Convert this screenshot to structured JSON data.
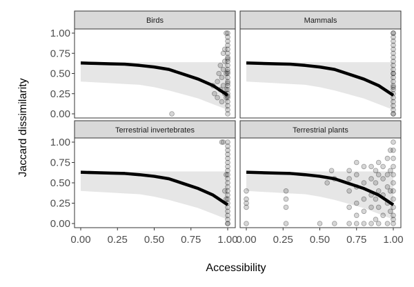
{
  "chart_data": {
    "type": "scatter",
    "xlabel": "Accessibility",
    "ylabel": "Jaccard dissimilarity",
    "xlim": [
      0,
      1
    ],
    "ylim": [
      0,
      1
    ],
    "x_ticks": [
      0.0,
      0.25,
      0.5,
      0.75,
      1.0
    ],
    "x_tick_labels": [
      "0.00",
      "0.25",
      "0.50",
      "0.75",
      "1.00"
    ],
    "y_ticks": [
      0.0,
      0.25,
      0.5,
      0.75,
      1.0
    ],
    "y_tick_labels": [
      "0.00",
      "0.25",
      "0.50",
      "0.75",
      "1.00"
    ],
    "grid": false,
    "colors": {
      "points": "#000000",
      "fit_line": "#000000",
      "ribbon": "#e6e6e6",
      "strip_bg": "#d9d9d9",
      "panel_border": "#333333"
    },
    "fit_line": {
      "x": [
        0.0,
        0.1,
        0.2,
        0.3,
        0.4,
        0.5,
        0.6,
        0.7,
        0.8,
        0.9,
        1.0
      ],
      "y": [
        0.63,
        0.625,
        0.62,
        0.615,
        0.6,
        0.58,
        0.55,
        0.49,
        0.43,
        0.35,
        0.23
      ],
      "ribbon_low": [
        0.4,
        0.39,
        0.38,
        0.37,
        0.36,
        0.33,
        0.29,
        0.24,
        0.19,
        0.12,
        0.05
      ],
      "ribbon_high": [
        0.63,
        0.635,
        0.635,
        0.635,
        0.64,
        0.64,
        0.64,
        0.64,
        0.64,
        0.64,
        0.64
      ]
    },
    "panels": [
      {
        "title": "Birds",
        "points": {
          "x": [
            0.62,
            0.9,
            0.91,
            0.93,
            0.93,
            0.94,
            0.95,
            0.95,
            0.96,
            0.96,
            0.97,
            0.97,
            0.97,
            0.98,
            0.98,
            0.98,
            0.99,
            0.99,
            0.99,
            0.99,
            1.0,
            1.0,
            1.0,
            1.0,
            1.0,
            1.0,
            1.0,
            1.0,
            1.0,
            1.0,
            1.0,
            1.0,
            1.0,
            1.0,
            1.0,
            1.0,
            1.0,
            1.0,
            1.0,
            1.0,
            1.0,
            1.0,
            1.0,
            1.0,
            1.0
          ],
          "y": [
            0.0,
            0.35,
            0.25,
            0.4,
            0.2,
            0.5,
            0.3,
            0.6,
            0.45,
            0.15,
            0.55,
            0.35,
            0.75,
            0.25,
            0.65,
            0.8,
            0.3,
            0.5,
            0.2,
            1.0,
            0.0,
            0.05,
            0.1,
            0.15,
            0.2,
            0.25,
            0.3,
            0.35,
            0.4,
            0.45,
            0.5,
            0.55,
            0.6,
            0.65,
            0.7,
            0.75,
            0.8,
            0.85,
            0.9,
            0.95,
            1.0,
            0.22,
            0.38,
            0.52,
            0.68
          ]
        }
      },
      {
        "title": "Mammals",
        "points": {
          "x": [
            1.0,
            1.0,
            1.0,
            1.0,
            1.0,
            1.0,
            1.0,
            1.0,
            1.0,
            1.0,
            1.0,
            1.0,
            1.0,
            1.0,
            1.0,
            1.0,
            1.0,
            1.0,
            1.0,
            1.0,
            1.0,
            1.0,
            1.0,
            1.0,
            1.0
          ],
          "y": [
            0.0,
            0.0,
            0.1,
            0.2,
            0.25,
            0.3,
            0.4,
            0.5,
            0.5,
            0.6,
            0.7,
            0.8,
            0.85,
            1.0,
            1.0,
            0.15,
            0.35,
            0.45,
            0.55,
            0.65,
            0.75,
            0.05,
            0.9,
            0.95,
            0.33
          ]
        }
      },
      {
        "title": "Terrestrial invertebrates",
        "points": {
          "x": [
            0.96,
            0.97,
            0.98,
            0.99,
            0.99,
            1.0,
            1.0,
            1.0,
            1.0,
            1.0,
            1.0,
            1.0,
            1.0,
            1.0,
            1.0,
            1.0,
            1.0,
            1.0,
            1.0,
            1.0,
            1.0,
            1.0,
            1.0,
            1.0,
            1.0,
            1.0,
            1.0
          ],
          "y": [
            1.0,
            1.0,
            0.4,
            0.3,
            0.6,
            0.0,
            0.0,
            0.05,
            0.1,
            0.15,
            0.2,
            0.25,
            0.3,
            0.35,
            0.4,
            0.45,
            0.5,
            0.55,
            0.6,
            0.65,
            0.7,
            0.75,
            0.8,
            0.85,
            0.9,
            0.95,
            1.0
          ]
        }
      },
      {
        "title": "Terrestrial plants",
        "points": {
          "x": [
            0.0,
            0.0,
            0.0,
            0.0,
            0.0,
            0.27,
            0.27,
            0.27,
            0.27,
            0.5,
            0.55,
            0.58,
            0.6,
            0.6,
            0.7,
            0.7,
            0.7,
            0.7,
            0.7,
            0.75,
            0.75,
            0.75,
            0.75,
            0.75,
            0.75,
            0.8,
            0.8,
            0.8,
            0.8,
            0.8,
            0.85,
            0.85,
            0.85,
            0.85,
            0.85,
            0.88,
            0.88,
            0.88,
            0.88,
            0.9,
            0.9,
            0.9,
            0.9,
            0.9,
            0.93,
            0.93,
            0.93,
            0.93,
            0.96,
            0.96,
            0.96,
            0.96,
            0.96,
            0.98,
            0.98,
            0.98,
            0.98,
            1.0,
            1.0,
            1.0,
            1.0,
            1.0,
            1.0,
            1.0,
            1.0,
            1.0,
            1.0,
            1.0,
            1.0
          ],
          "y": [
            0.0,
            0.2,
            0.25,
            0.3,
            0.4,
            0.0,
            0.2,
            0.3,
            0.4,
            0.0,
            0.5,
            0.65,
            0.0,
            0.55,
            0.0,
            0.2,
            0.4,
            0.55,
            0.65,
            0.0,
            0.1,
            0.25,
            0.45,
            0.6,
            0.75,
            0.0,
            0.15,
            0.3,
            0.5,
            0.7,
            0.0,
            0.2,
            0.35,
            0.55,
            0.7,
            0.05,
            0.3,
            0.5,
            0.65,
            0.0,
            0.2,
            0.4,
            0.6,
            0.75,
            0.1,
            0.35,
            0.55,
            0.7,
            0.0,
            0.25,
            0.45,
            0.6,
            0.8,
            0.15,
            0.4,
            0.65,
            0.9,
            0.0,
            0.1,
            0.2,
            0.3,
            0.4,
            0.5,
            0.6,
            0.7,
            0.8,
            0.9,
            1.0,
            0.05
          ]
        }
      }
    ]
  }
}
